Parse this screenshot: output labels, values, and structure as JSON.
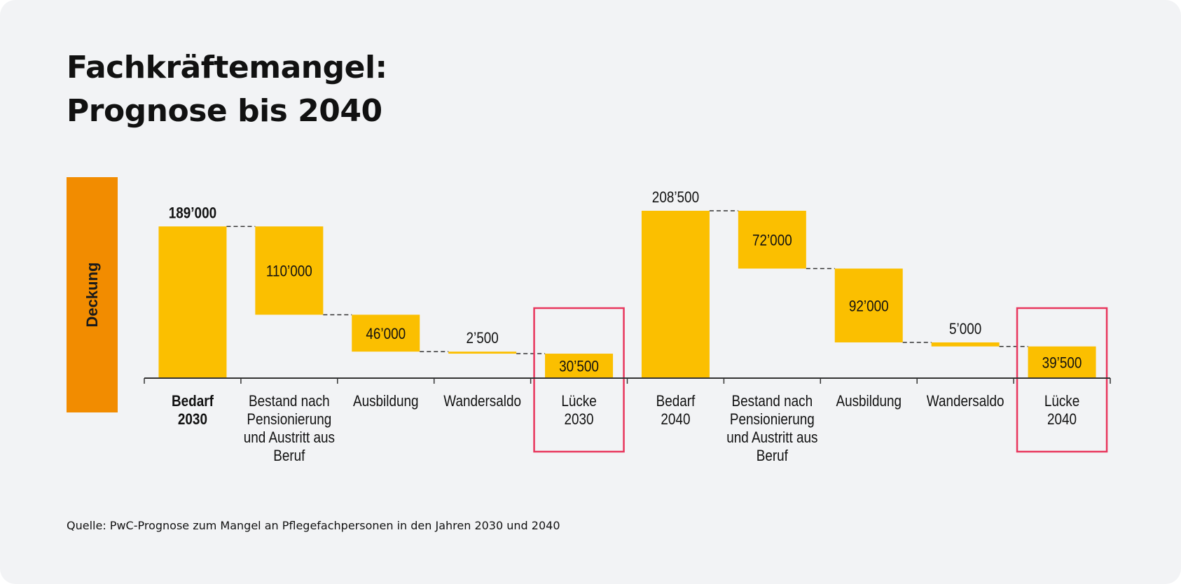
{
  "title_lines": [
    "Fachkräftemangel:",
    "Prognose bis 2040"
  ],
  "side_label": "Deckung",
  "source": "Quelle: PwC-Prognose zum Mangel an Pflegefachpersonen in den Jahren 2030 und 2040",
  "colors": {
    "bar": "#fbbf00",
    "side_bar": "#f28c00",
    "highlight": "#e8365d",
    "background": "#f2f3f5"
  },
  "chart_data": {
    "type": "bar",
    "subtype": "waterfall",
    "title": "",
    "xlabel": "",
    "ylabel": "Deckung",
    "grid": false,
    "categories": [
      [
        "Bedarf",
        "2030"
      ],
      [
        "Bestand nach",
        "Pensionierung",
        "und Austritt aus",
        "Beruf"
      ],
      [
        "Ausbildung"
      ],
      [
        "Wandersaldo"
      ],
      [
        "Lücke",
        "2030"
      ],
      [
        "Bedarf",
        "2040"
      ],
      [
        "Bestand nach",
        "Pensionierung",
        "und Austritt aus",
        "Beruf"
      ],
      [
        "Ausbildung"
      ],
      [
        "Wandersaldo"
      ],
      [
        "Lücke",
        "2040"
      ]
    ],
    "bars": [
      {
        "value": 189000,
        "start": 0,
        "end": 189000,
        "label": "189’000",
        "label_pos": "above",
        "bold": true,
        "highlight": false
      },
      {
        "value": 110000,
        "start": 79000,
        "end": 189000,
        "label": "110’000",
        "label_pos": "inside",
        "bold": false,
        "highlight": false
      },
      {
        "value": 46000,
        "start": 33000,
        "end": 79000,
        "label": "46’000",
        "label_pos": "inside",
        "bold": false,
        "highlight": false
      },
      {
        "value": 2500,
        "start": 30500,
        "end": 33000,
        "label": "2’500",
        "label_pos": "above",
        "bold": false,
        "highlight": false
      },
      {
        "value": 30500,
        "start": 0,
        "end": 30500,
        "label": "30’500",
        "label_pos": "inside",
        "bold": false,
        "highlight": true
      },
      {
        "value": 208500,
        "start": 0,
        "end": 208500,
        "label": "208’500",
        "label_pos": "above",
        "bold": false,
        "highlight": false
      },
      {
        "value": 72000,
        "start": 136500,
        "end": 208500,
        "label": "72’000",
        "label_pos": "inside",
        "bold": false,
        "highlight": false
      },
      {
        "value": 92000,
        "start": 44500,
        "end": 136500,
        "label": "92’000",
        "label_pos": "inside",
        "bold": false,
        "highlight": false
      },
      {
        "value": 5000,
        "start": 39500,
        "end": 44500,
        "label": "5’000",
        "label_pos": "above",
        "bold": false,
        "highlight": false
      },
      {
        "value": 39500,
        "start": 0,
        "end": 39500,
        "label": "39’500",
        "label_pos": "inside",
        "bold": false,
        "highlight": true
      }
    ]
  }
}
